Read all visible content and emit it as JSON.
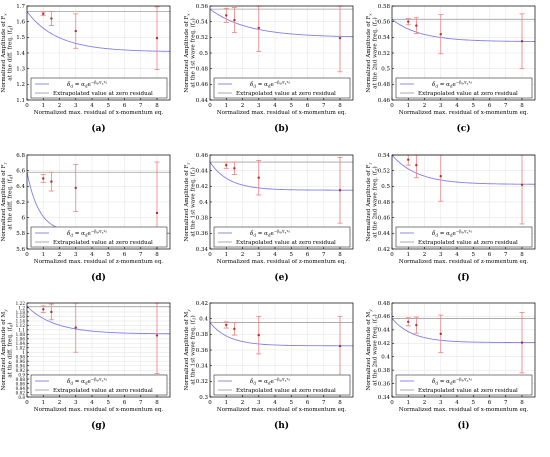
{
  "legend": {
    "fit_label": "δ",
    "fit_label_sub": "d",
    "fit_equation": " = α",
    "fit_equation_sub": "d",
    "fit_equation_tail": "e",
    "fit_exponent": "−β",
    "fit_exponent_sub": "d",
    "fit_exponent_tail": "/r",
    "fit_exponent_r_sub": "x",
    "fit_exponent_r_sup": "γ",
    "fit_exponent_r_sup_sub": "d",
    "hline_label": "Extrapolated value at zero residual"
  },
  "colors": {
    "fit_line": "#8080e6",
    "error_bar": "#f08080",
    "extrapolated_line": "#a0a0a0",
    "grid": "#e6e6e6",
    "marker": "#b03030"
  },
  "chart_data": [
    {
      "panel": "(a)",
      "type": "line",
      "ylabel_lines": [
        "Normalized Amplitude of F",
        "at the diff. freq. (f",
        ")"
      ],
      "ylabel_sym": "x",
      "ylabel_sub": "d",
      "xlabel": "Normalized max. residual of x-momentum eq.",
      "xlim": [
        0,
        8.8
      ],
      "ylim": [
        1.1,
        1.7
      ],
      "yticks": [
        1.1,
        1.2,
        1.3,
        1.4,
        1.5,
        1.6,
        1.7
      ],
      "xticks": [
        0,
        1,
        2,
        3,
        4,
        5,
        6,
        7,
        8
      ],
      "extrapolated": 1.665,
      "fit": {
        "a": 1.665,
        "b": 0.168,
        "c": 2.0
      },
      "points": [
        {
          "x": 1,
          "y": 1.65,
          "err": 0.012
        },
        {
          "x": 1.5,
          "y": 1.62,
          "err": 0.045
        },
        {
          "x": 3,
          "y": 1.54,
          "err": 0.11
        },
        {
          "x": 8,
          "y": 1.495,
          "err": 0.2
        }
      ]
    },
    {
      "panel": "(b)",
      "type": "line",
      "ylabel_lines": [
        "Normalized Amplitude of F",
        "at the 1st wave freq. (f",
        ")"
      ],
      "ylabel_sym": "x",
      "ylabel_sub": "1",
      "xlabel": "Normalized max. residual of x-momentum eq.",
      "xlim": [
        0,
        8.8
      ],
      "ylim": [
        0.44,
        0.56
      ],
      "yticks": [
        0.44,
        0.46,
        0.48,
        0.5,
        0.52,
        0.54,
        0.56
      ],
      "xticks": [
        0,
        1,
        2,
        3,
        4,
        5,
        6,
        7,
        8
      ],
      "extrapolated": 0.556,
      "fit": {
        "a": 0.556,
        "b": 0.067,
        "c": 2.4
      },
      "points": [
        {
          "x": 1,
          "y": 0.548,
          "err": 0.009
        },
        {
          "x": 1.5,
          "y": 0.542,
          "err": 0.016
        },
        {
          "x": 3,
          "y": 0.532,
          "err": 0.03
        },
        {
          "x": 8,
          "y": 0.519,
          "err": 0.043
        }
      ]
    },
    {
      "panel": "(c)",
      "type": "line",
      "ylabel_lines": [
        "Normalized Amplitude of F",
        "at the 2nd wave freq. (f",
        ")"
      ],
      "ylabel_sym": "x",
      "ylabel_sub": "2",
      "xlabel": "Normalized max. residual of x-momentum eq.",
      "xlim": [
        0,
        8.8
      ],
      "ylim": [
        0.46,
        0.58
      ],
      "yticks": [
        0.46,
        0.48,
        0.5,
        0.52,
        0.54,
        0.56,
        0.58
      ],
      "xticks": [
        0,
        1,
        2,
        3,
        4,
        5,
        6,
        7,
        8
      ],
      "extrapolated": 0.563,
      "fit": {
        "a": 0.563,
        "b": 0.052,
        "c": 1.8
      },
      "points": [
        {
          "x": 1,
          "y": 0.56,
          "err": 0.004
        },
        {
          "x": 1.5,
          "y": 0.555,
          "err": 0.01
        },
        {
          "x": 3,
          "y": 0.544,
          "err": 0.025
        },
        {
          "x": 8,
          "y": 0.535,
          "err": 0.035
        }
      ]
    },
    {
      "panel": "(d)",
      "type": "line",
      "ylabel_lines": [
        "Normalized Amplitude of F",
        "at the diff. freq. (f",
        ")"
      ],
      "ylabel_sym": "z",
      "ylabel_sub": "d",
      "xlabel": "Normalized max. residual of z-momentum eq.",
      "xlim": [
        0,
        8.8
      ],
      "ylim": [
        5.6,
        6.8
      ],
      "yticks": [
        5.6,
        5.8,
        6,
        6.2,
        6.4,
        6.6,
        6.8
      ],
      "xticks": [
        0,
        1,
        2,
        3,
        4,
        5,
        6,
        7,
        8
      ],
      "extrapolated": 6.58,
      "fit": {
        "a": 6.58,
        "b": 0.126,
        "c": 0.8
      },
      "points": [
        {
          "x": 1,
          "y": 6.5,
          "err": 0.05
        },
        {
          "x": 1.5,
          "y": 6.46,
          "err": 0.12
        },
        {
          "x": 3,
          "y": 6.38,
          "err": 0.3
        },
        {
          "x": 8,
          "y": 6.06,
          "err": 0.65
        }
      ]
    },
    {
      "panel": "(e)",
      "type": "line",
      "ylabel_lines": [
        "Normalized Amplitude of F",
        "at the 1st wave freq. (f",
        ")"
      ],
      "ylabel_sym": "z",
      "ylabel_sub": "1",
      "xlabel": "Normalized max. residual of z-momentum eq.",
      "xlim": [
        0,
        8.8
      ],
      "ylim": [
        0.34,
        0.46
      ],
      "yticks": [
        0.34,
        0.36,
        0.38,
        0.4,
        0.42,
        0.44,
        0.46
      ],
      "xticks": [
        0,
        1,
        2,
        3,
        4,
        5,
        6,
        7,
        8
      ],
      "extrapolated": 0.451,
      "fit": {
        "a": 0.451,
        "b": 0.083,
        "c": 1.2
      },
      "points": [
        {
          "x": 1,
          "y": 0.447,
          "err": 0.004
        },
        {
          "x": 1.5,
          "y": 0.443,
          "err": 0.008
        },
        {
          "x": 3,
          "y": 0.431,
          "err": 0.022
        },
        {
          "x": 8,
          "y": 0.415,
          "err": 0.042
        }
      ]
    },
    {
      "panel": "(f)",
      "type": "line",
      "ylabel_lines": [
        "Normalized Amplitude of F",
        "at the 2nd wave freq. (f",
        ")"
      ],
      "ylabel_sym": "z",
      "ylabel_sub": "2",
      "xlabel": "Normalized max. residual of z-momentum eq.",
      "xlim": [
        0,
        8.8
      ],
      "ylim": [
        0.42,
        0.54
      ],
      "yticks": [
        0.42,
        0.44,
        0.46,
        0.48,
        0.5,
        0.52,
        0.54
      ],
      "xticks": [
        0,
        1,
        2,
        3,
        4,
        5,
        6,
        7,
        8
      ],
      "extrapolated": 0.54,
      "fit": {
        "a": 0.54,
        "b": 0.072,
        "c": 1.6
      },
      "points": [
        {
          "x": 1,
          "y": 0.534,
          "err": 0.007
        },
        {
          "x": 1.5,
          "y": 0.527,
          "err": 0.016
        },
        {
          "x": 3,
          "y": 0.513,
          "err": 0.032
        },
        {
          "x": 8,
          "y": 0.502,
          "err": 0.05
        }
      ]
    },
    {
      "panel": "(g)",
      "type": "line",
      "ylabel_lines": [
        "Normalized Amplitude of M",
        "at the diff. freq. (f",
        ")"
      ],
      "ylabel_sym": "y",
      "ylabel_sub": "d",
      "xlabel": "Normalized max. residual of x-momentum eq.",
      "xlim": [
        0,
        8.8
      ],
      "ylim": [
        0.8,
        1.22
      ],
      "yticks": [
        0.8,
        0.82,
        0.84,
        0.86,
        0.88,
        0.9,
        0.92,
        0.94,
        0.96,
        0.98,
        1,
        1.02,
        1.04,
        1.06,
        1.08,
        1.1,
        1.12,
        1.14,
        1.16,
        1.18,
        1.2,
        1.22
      ],
      "xticks": [
        0,
        1,
        2,
        3,
        4,
        5,
        6,
        7,
        8
      ],
      "extrapolated": 1.205,
      "fit": {
        "a": 1.205,
        "b": 0.108,
        "c": 1.8
      },
      "points": [
        {
          "x": 1,
          "y": 1.192,
          "err": 0.015
        },
        {
          "x": 1.5,
          "y": 1.18,
          "err": 0.035
        },
        {
          "x": 3,
          "y": 1.11,
          "err": 0.11
        },
        {
          "x": 8,
          "y": 1.075,
          "err": 0.17
        }
      ]
    },
    {
      "panel": "(h)",
      "type": "line",
      "ylabel_lines": [
        "Normalized Amplitude of M",
        "at the 1st wave freq. (f",
        ")"
      ],
      "ylabel_sym": "y",
      "ylabel_sub": "1",
      "xlabel": "Normalized max. residual of x-momentum eq.",
      "xlim": [
        0,
        8.8
      ],
      "ylim": [
        0.3,
        0.42
      ],
      "yticks": [
        0.3,
        0.32,
        0.34,
        0.36,
        0.38,
        0.4,
        0.42
      ],
      "xticks": [
        0,
        1,
        2,
        3,
        4,
        5,
        6,
        7,
        8
      ],
      "extrapolated": 0.395,
      "fit": {
        "a": 0.395,
        "b": 0.078,
        "c": 1.2
      },
      "points": [
        {
          "x": 1,
          "y": 0.392,
          "err": 0.004
        },
        {
          "x": 1.5,
          "y": 0.387,
          "err": 0.008
        },
        {
          "x": 3,
          "y": 0.379,
          "err": 0.024
        },
        {
          "x": 8,
          "y": 0.365,
          "err": 0.038
        }
      ]
    },
    {
      "panel": "(i)",
      "type": "line",
      "ylabel_lines": [
        "Normalized Amplitude of M",
        "at the 2nd wave freq. (f",
        ")"
      ],
      "ylabel_sym": "y",
      "ylabel_sub": "2",
      "xlabel": "Normalized max. residual of x-momentum eq.",
      "xlim": [
        0,
        8.8
      ],
      "ylim": [
        0.34,
        0.48
      ],
      "yticks": [
        0.34,
        0.36,
        0.38,
        0.4,
        0.42,
        0.44,
        0.46,
        0.48
      ],
      "xticks": [
        0,
        1,
        2,
        3,
        4,
        5,
        6,
        7,
        8
      ],
      "extrapolated": 0.457,
      "fit": {
        "a": 0.457,
        "b": 0.082,
        "c": 1.3
      },
      "points": [
        {
          "x": 1,
          "y": 0.452,
          "err": 0.006
        },
        {
          "x": 1.5,
          "y": 0.447,
          "err": 0.012
        },
        {
          "x": 3,
          "y": 0.434,
          "err": 0.028
        },
        {
          "x": 8,
          "y": 0.421,
          "err": 0.045
        }
      ]
    }
  ]
}
